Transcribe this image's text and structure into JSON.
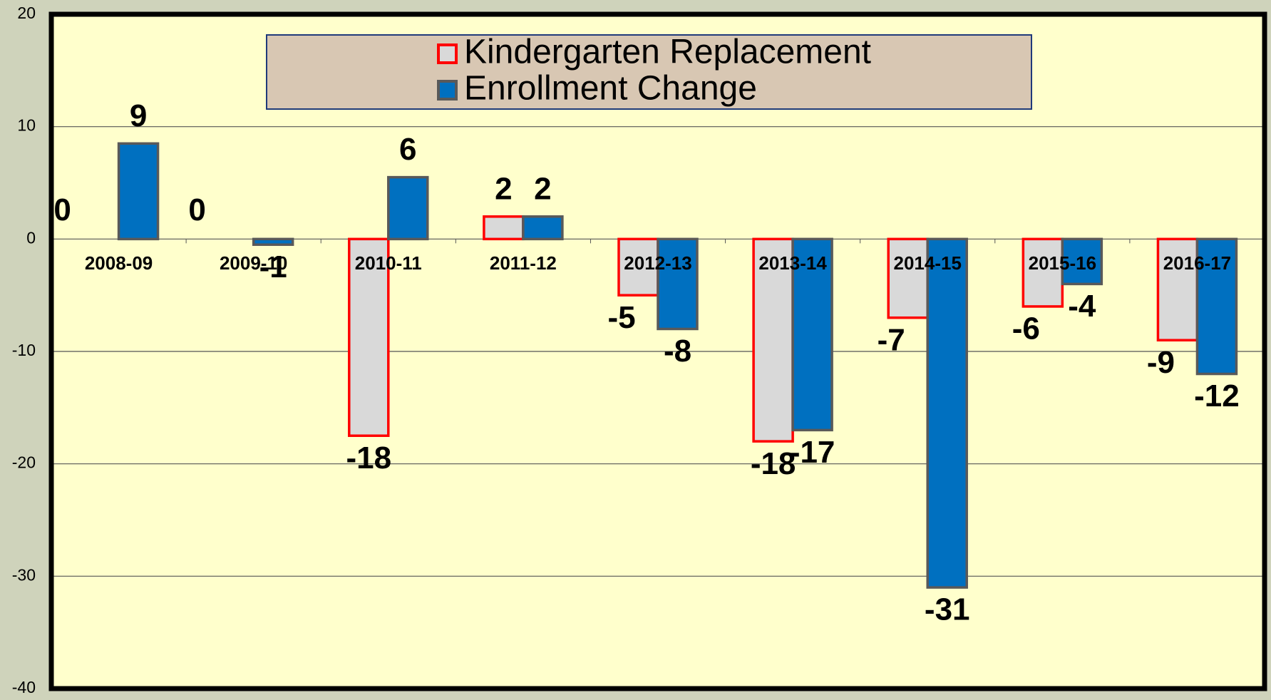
{
  "chart_data": {
    "type": "bar",
    "categories": [
      "2008-09",
      "2009-10",
      "2010-11",
      "2011-12",
      "2012-13",
      "2013-14",
      "2014-15",
      "2015-16",
      "2016-17"
    ],
    "series": [
      {
        "name": "Kindergarten Replacement",
        "color": "#d9d9d9",
        "edge": "#ff0000",
        "values": [
          0,
          0,
          -17.5,
          2,
          -5,
          -18,
          -7,
          -6,
          -9
        ],
        "value_labels": [
          "0",
          "0",
          "-18",
          "2",
          "-5",
          "-18",
          "-7",
          "-6",
          "-9"
        ]
      },
      {
        "name": "Enrollment Change",
        "color": "#0070c0",
        "edge": "#595959",
        "values": [
          8.5,
          -0.5,
          5.5,
          2,
          -8,
          -17,
          -31,
          -4,
          -12
        ],
        "value_labels": [
          "9",
          "-1",
          "6",
          "2",
          "-8",
          "-17",
          "-31",
          "-4",
          "-12"
        ]
      }
    ],
    "ylim": [
      -40,
      20
    ],
    "yticks": [
      -40,
      -30,
      -20,
      -10,
      0,
      10,
      20
    ],
    "grid": true,
    "legend": "top"
  }
}
